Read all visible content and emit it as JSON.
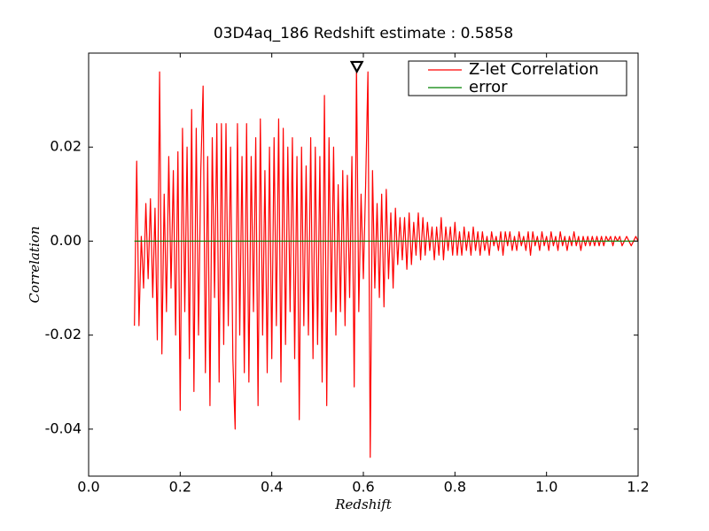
{
  "chart_data": {
    "type": "line",
    "title": "03D4aq_186 Redshift estimate : 0.5858",
    "xlabel": "Redshift",
    "ylabel": "Correlation",
    "xlim": [
      0,
      1.2
    ],
    "ylim": [
      -0.05,
      0.04
    ],
    "xticks": [
      {
        "value": 0,
        "label": "0.0"
      },
      0.2,
      0.4,
      0.6,
      0.8,
      {
        "value": 1,
        "label": "1.0"
      },
      1.2
    ],
    "yticks": [
      -0.04,
      -0.02,
      {
        "value": 0,
        "label": "0.00"
      },
      0.02
    ],
    "legend": "upper right",
    "grid": false,
    "x": [
      0.1,
      0.105,
      0.11,
      0.115,
      0.12,
      0.125,
      0.13,
      0.135,
      0.14,
      0.145,
      0.15,
      0.155,
      0.16,
      0.165,
      0.17,
      0.175,
      0.18,
      0.185,
      0.19,
      0.195,
      0.2,
      0.205,
      0.21,
      0.215,
      0.22,
      0.225,
      0.23,
      0.235,
      0.24,
      0.245,
      0.25,
      0.255,
      0.26,
      0.265,
      0.27,
      0.275,
      0.28,
      0.285,
      0.29,
      0.295,
      0.3,
      0.305,
      0.31,
      0.315,
      0.32,
      0.325,
      0.33,
      0.335,
      0.34,
      0.345,
      0.35,
      0.355,
      0.36,
      0.365,
      0.37,
      0.375,
      0.38,
      0.385,
      0.39,
      0.395,
      0.4,
      0.405,
      0.41,
      0.415,
      0.42,
      0.425,
      0.43,
      0.435,
      0.44,
      0.445,
      0.45,
      0.455,
      0.46,
      0.465,
      0.47,
      0.475,
      0.48,
      0.485,
      0.49,
      0.495,
      0.5,
      0.505,
      0.51,
      0.515,
      0.52,
      0.525,
      0.53,
      0.535,
      0.54,
      0.545,
      0.55,
      0.555,
      0.56,
      0.565,
      0.57,
      0.575,
      0.58,
      0.585,
      0.59,
      0.595,
      0.6,
      0.605,
      0.61,
      0.615,
      0.62,
      0.625,
      0.63,
      0.635,
      0.64,
      0.645,
      0.65,
      0.655,
      0.66,
      0.665,
      0.67,
      0.675,
      0.68,
      0.685,
      0.69,
      0.695,
      0.7,
      0.705,
      0.71,
      0.715,
      0.72,
      0.725,
      0.73,
      0.735,
      0.74,
      0.745,
      0.75,
      0.755,
      0.76,
      0.765,
      0.77,
      0.775,
      0.78,
      0.785,
      0.79,
      0.795,
      0.8,
      0.805,
      0.81,
      0.815,
      0.82,
      0.825,
      0.83,
      0.835,
      0.84,
      0.845,
      0.85,
      0.855,
      0.86,
      0.865,
      0.87,
      0.875,
      0.88,
      0.885,
      0.89,
      0.895,
      0.9,
      0.905,
      0.91,
      0.915,
      0.92,
      0.925,
      0.93,
      0.935,
      0.94,
      0.945,
      0.95,
      0.955,
      0.96,
      0.965,
      0.97,
      0.975,
      0.98,
      0.985,
      0.99,
      0.995,
      1.0,
      1.005,
      1.01,
      1.015,
      1.02,
      1.025,
      1.03,
      1.035,
      1.04,
      1.045,
      1.05,
      1.055,
      1.06,
      1.065,
      1.07,
      1.075,
      1.08,
      1.085,
      1.09,
      1.095,
      1.1,
      1.105,
      1.11,
      1.115,
      1.12,
      1.125,
      1.13,
      1.135,
      1.14,
      1.145,
      1.15,
      1.155,
      1.16,
      1.165,
      1.17,
      1.175,
      1.18,
      1.185,
      1.19,
      1.195,
      1.2
    ],
    "series": [
      {
        "name": "Z-let Correlation",
        "color": "#ff0000",
        "values": [
          -0.018,
          0.017,
          -0.018,
          0.001,
          -0.01,
          0.008,
          -0.008,
          0.009,
          -0.012,
          0.007,
          -0.021,
          0.036,
          -0.024,
          0.01,
          -0.015,
          0.018,
          -0.01,
          0.015,
          -0.02,
          0.019,
          -0.036,
          0.024,
          -0.015,
          0.02,
          -0.025,
          0.028,
          -0.032,
          0.024,
          -0.02,
          0.015,
          0.033,
          -0.028,
          0.018,
          -0.035,
          0.022,
          -0.012,
          0.025,
          -0.03,
          0.025,
          -0.022,
          0.025,
          -0.018,
          0.02,
          -0.025,
          -0.04,
          0.025,
          -0.02,
          0.018,
          -0.028,
          0.025,
          -0.03,
          0.018,
          -0.015,
          0.022,
          -0.035,
          0.026,
          -0.02,
          0.015,
          -0.028,
          0.02,
          -0.025,
          0.022,
          -0.018,
          0.026,
          -0.03,
          0.024,
          -0.022,
          0.02,
          -0.015,
          0.022,
          -0.025,
          0.018,
          -0.038,
          0.02,
          -0.018,
          0.016,
          -0.02,
          0.022,
          -0.025,
          0.02,
          -0.022,
          0.018,
          -0.03,
          0.031,
          -0.035,
          0.022,
          -0.015,
          0.02,
          -0.02,
          0.012,
          -0.015,
          0.015,
          -0.018,
          0.014,
          -0.012,
          0.018,
          -0.031,
          0.037,
          -0.015,
          0.01,
          -0.008,
          0.012,
          0.036,
          -0.046,
          0.015,
          -0.01,
          0.008,
          -0.012,
          0.01,
          -0.014,
          0.011,
          -0.008,
          0.006,
          -0.01,
          0.007,
          -0.005,
          0.005,
          -0.004,
          0.005,
          -0.006,
          0.006,
          -0.005,
          0.004,
          -0.003,
          0.006,
          -0.004,
          0.005,
          -0.003,
          0.004,
          -0.002,
          0.003,
          -0.004,
          0.003,
          -0.003,
          0.005,
          -0.004,
          0.003,
          -0.002,
          0.003,
          -0.003,
          0.004,
          -0.003,
          0.002,
          -0.003,
          0.003,
          -0.002,
          0.002,
          -0.003,
          0.003,
          -0.002,
          0.002,
          -0.003,
          0.002,
          -0.002,
          0.001,
          -0.003,
          0.002,
          -0.001,
          0.001,
          -0.002,
          0.002,
          -0.003,
          0.002,
          -0.001,
          0.002,
          -0.002,
          0.001,
          -0.002,
          0.002,
          -0.001,
          0.001,
          -0.002,
          0.002,
          -0.003,
          0.002,
          -0.001,
          0.001,
          -0.002,
          0.002,
          -0.001,
          0.001,
          -0.002,
          0.002,
          -0.001,
          0.001,
          -0.002,
          0.002,
          -0.001,
          0.001,
          -0.002,
          0.001,
          -0.001,
          0.002,
          -0.001,
          0.001,
          -0.002,
          0.001,
          -0.001,
          0.001,
          -0.001,
          0.001,
          -0.001,
          0.001,
          -0.001,
          0.001,
          -0.001,
          0.001,
          0,
          0.001,
          -0.001,
          0.001,
          0,
          0.001,
          -0.001,
          0,
          0.001,
          0,
          -0.001,
          0,
          0.001,
          0
        ]
      },
      {
        "name": "error",
        "color": "#008000",
        "x": [
          0.1,
          1.2
        ],
        "values": [
          0,
          0
        ]
      }
    ],
    "marker": {
      "x": 0.5858,
      "y": 0.037,
      "color": "#000000"
    }
  }
}
